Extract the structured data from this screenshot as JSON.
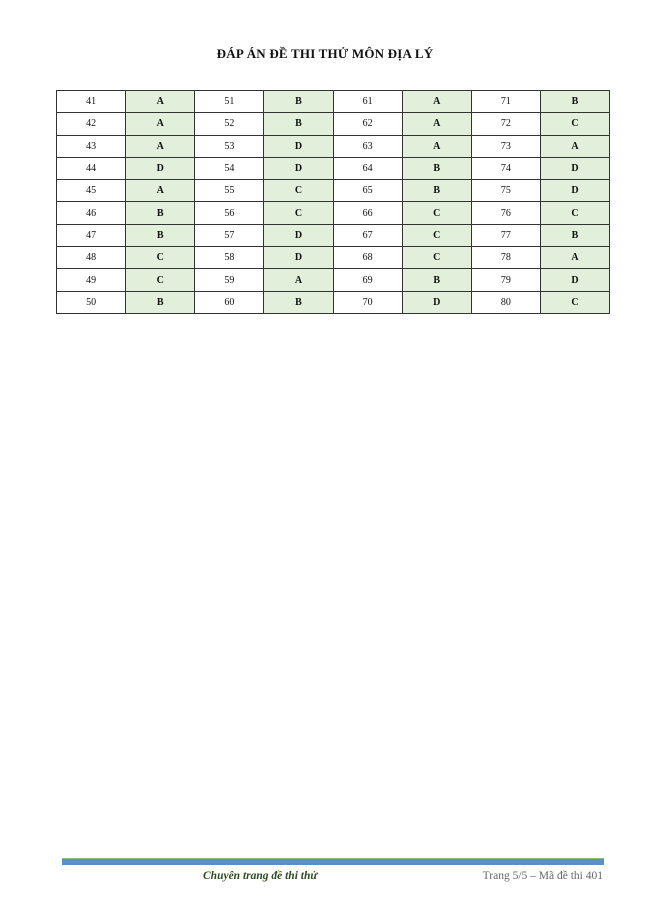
{
  "title": "ĐÁP ÁN ĐỀ THI THỬ MÔN ĐỊA LÝ",
  "answers": [
    [
      {
        "q": "41",
        "a": "A"
      },
      {
        "q": "51",
        "a": "B"
      },
      {
        "q": "61",
        "a": "A"
      },
      {
        "q": "71",
        "a": "B"
      }
    ],
    [
      {
        "q": "42",
        "a": "A"
      },
      {
        "q": "52",
        "a": "B"
      },
      {
        "q": "62",
        "a": "A"
      },
      {
        "q": "72",
        "a": "C"
      }
    ],
    [
      {
        "q": "43",
        "a": "A"
      },
      {
        "q": "53",
        "a": "D"
      },
      {
        "q": "63",
        "a": "A"
      },
      {
        "q": "73",
        "a": "A"
      }
    ],
    [
      {
        "q": "44",
        "a": "D"
      },
      {
        "q": "54",
        "a": "D"
      },
      {
        "q": "64",
        "a": "B"
      },
      {
        "q": "74",
        "a": "D"
      }
    ],
    [
      {
        "q": "45",
        "a": "A"
      },
      {
        "q": "55",
        "a": "C"
      },
      {
        "q": "65",
        "a": "B"
      },
      {
        "q": "75",
        "a": "D"
      }
    ],
    [
      {
        "q": "46",
        "a": "B"
      },
      {
        "q": "56",
        "a": "C"
      },
      {
        "q": "66",
        "a": "C"
      },
      {
        "q": "76",
        "a": "C"
      }
    ],
    [
      {
        "q": "47",
        "a": "B"
      },
      {
        "q": "57",
        "a": "D"
      },
      {
        "q": "67",
        "a": "C"
      },
      {
        "q": "77",
        "a": "B"
      }
    ],
    [
      {
        "q": "48",
        "a": "C"
      },
      {
        "q": "58",
        "a": "D"
      },
      {
        "q": "68",
        "a": "C"
      },
      {
        "q": "78",
        "a": "A"
      }
    ],
    [
      {
        "q": "49",
        "a": "C"
      },
      {
        "q": "59",
        "a": "A"
      },
      {
        "q": "69",
        "a": "B"
      },
      {
        "q": "79",
        "a": "D"
      }
    ],
    [
      {
        "q": "50",
        "a": "B"
      },
      {
        "q": "60",
        "a": "B"
      },
      {
        "q": "70",
        "a": "D"
      },
      {
        "q": "80",
        "a": "C"
      }
    ]
  ],
  "footer": {
    "left": "Chuyên trang đề thi thử",
    "right": "Trang 5/5 – Mã đề thi 401"
  },
  "colors": {
    "answer_cell": "#e2efda",
    "footer_bar": "#5b8fc7",
    "footer_line": "#8cc06a"
  }
}
